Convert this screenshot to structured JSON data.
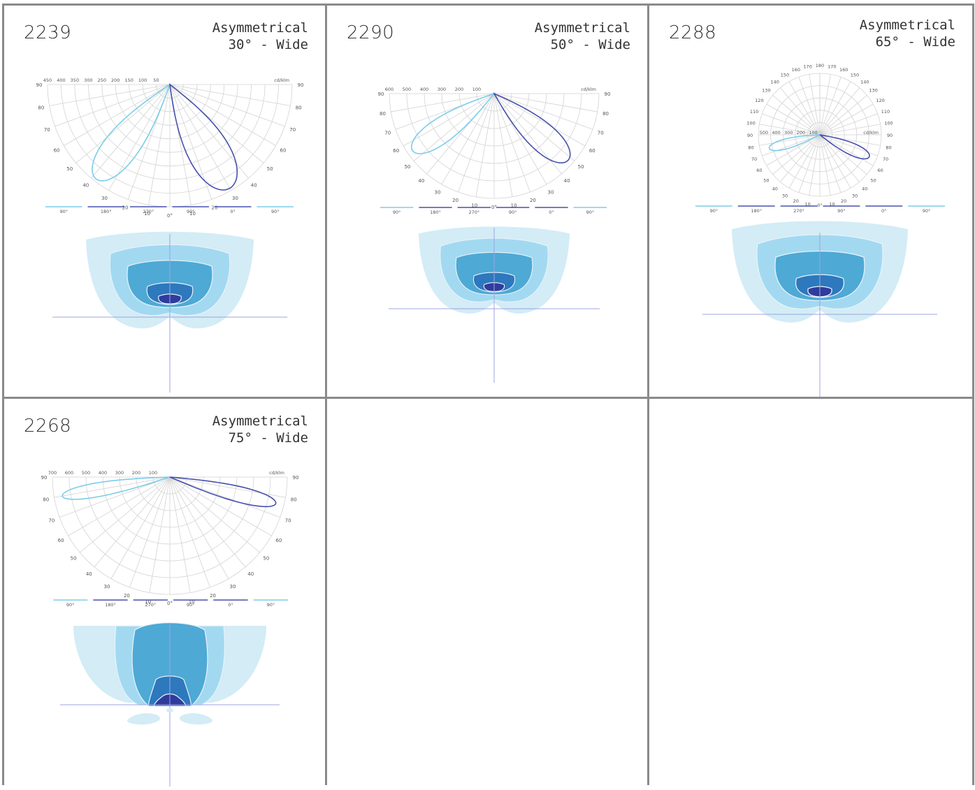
{
  "colors": {
    "polar_c0": "#7ccde8",
    "polar_c90": "#4750ad",
    "grid": "#d3d3d3",
    "zone1": "#d3ecf6",
    "zone2": "#a2d9f1",
    "zone3": "#4ea9d5",
    "zone4": "#2e78bd",
    "zone5": "#2f3c9c",
    "axis": "#9ea4e0"
  },
  "panels": [
    {
      "code": "2239",
      "type": "Asymmetrical",
      "angle": "30° - Wide",
      "scale_labels": [
        "450",
        "400",
        "350",
        "300",
        "250",
        "200",
        "150",
        "100",
        "50"
      ],
      "unit": "cd/klm",
      "angle_ticks": [
        "90",
        "80",
        "70",
        "60",
        "50",
        "40",
        "30",
        "20",
        "10",
        "0°",
        "10",
        "20",
        "30",
        "40",
        "50",
        "60",
        "70",
        "80",
        "90"
      ],
      "legend": [
        "90°",
        "180°",
        "270°",
        "90°",
        "0°",
        "90°"
      ]
    },
    {
      "code": "2290",
      "type": "Asymmetrical",
      "angle": "50° - Wide",
      "scale_labels": [
        "600",
        "500",
        "400",
        "300",
        "200",
        "100"
      ],
      "unit": "cd/klm",
      "angle_ticks": [
        "90",
        "80",
        "70",
        "60",
        "50",
        "40",
        "30",
        "20",
        "10",
        "0°",
        "10",
        "20",
        "30",
        "40",
        "50",
        "60",
        "70",
        "80",
        "90"
      ],
      "legend": [
        "90°",
        "180°",
        "270°",
        "90°",
        "0°",
        "90°"
      ]
    },
    {
      "code": "2288",
      "type": "Asymmetrical",
      "angle": "65° - Wide",
      "scale_labels": [
        "500",
        "400",
        "300",
        "200",
        "100"
      ],
      "unit": "cd/klm",
      "angle_ticks": [
        "180",
        "170",
        "160",
        "150",
        "140",
        "130",
        "120",
        "110",
        "100",
        "90",
        "80",
        "70",
        "60",
        "50",
        "40",
        "30",
        "20",
        "10",
        "0°",
        "10",
        "20",
        "30",
        "40",
        "50",
        "60",
        "70",
        "80",
        "90",
        "100",
        "110",
        "120",
        "130",
        "140",
        "150",
        "160",
        "170"
      ],
      "legend": [
        "90°",
        "180°",
        "270°",
        "90°",
        "0°",
        "90°"
      ]
    },
    {
      "code": "2268",
      "type": "Asymmetrical",
      "angle": "75° - Wide",
      "scale_labels": [
        "700",
        "600",
        "500",
        "400",
        "300",
        "200",
        "100"
      ],
      "unit": "cd/klm",
      "angle_ticks": [
        "90",
        "80",
        "70",
        "60",
        "50",
        "40",
        "30",
        "20",
        "10",
        "0°",
        "10",
        "20",
        "30",
        "40",
        "50",
        "60",
        "70",
        "80",
        "90"
      ],
      "legend": [
        "90°",
        "180°",
        "270°",
        "90°",
        "0°",
        "90°"
      ]
    }
  ]
}
